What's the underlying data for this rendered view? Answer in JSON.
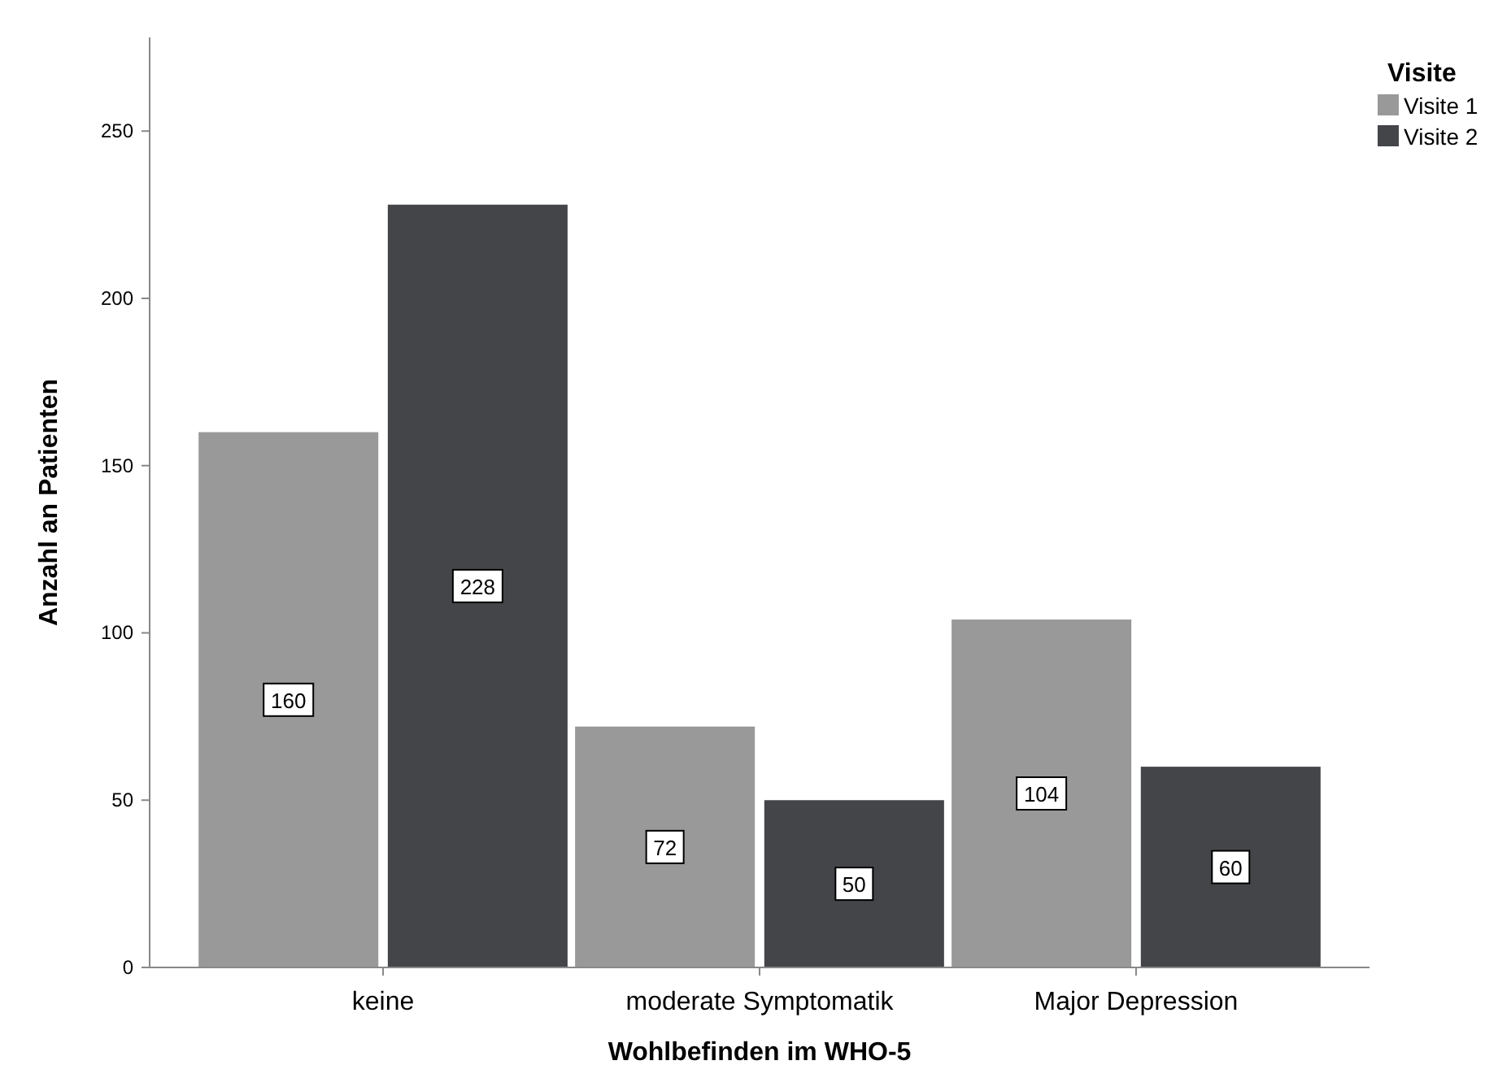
{
  "chart_data": {
    "type": "bar",
    "xlabel": "Wohlbefinden im WHO-5",
    "ylabel": "Anzahl an Patienten",
    "legend_title": "Visite",
    "categories": [
      "keine",
      "moderate Symptomatik",
      "Major Depression"
    ],
    "series": [
      {
        "name": "Visite 1",
        "color": "#999999",
        "values": [
          160,
          72,
          104
        ]
      },
      {
        "name": "Visite 2",
        "color": "#434548",
        "values": [
          228,
          50,
          60
        ]
      }
    ],
    "ylim": [
      0,
      278
    ],
    "yticks": [
      0,
      50,
      100,
      150,
      200,
      250
    ],
    "grid": false,
    "legend": "top right",
    "data_labels": true
  }
}
